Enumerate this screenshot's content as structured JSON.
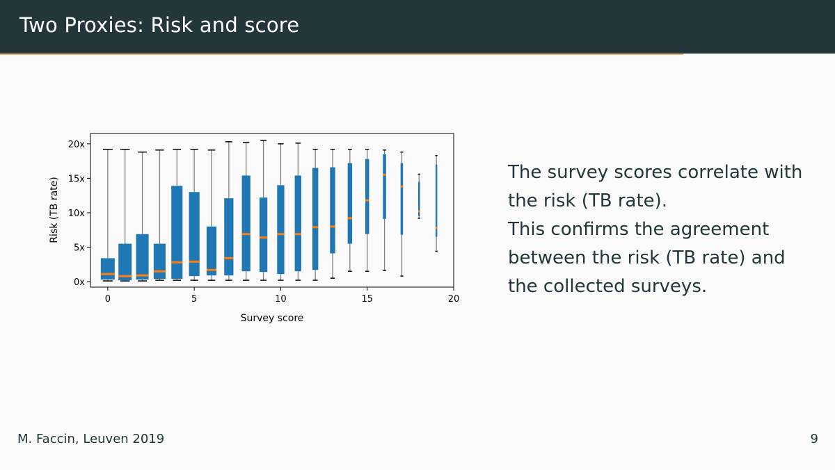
{
  "header": {
    "title": "Two Proxies: Risk and score"
  },
  "body": {
    "line1": "The survey scores correlate with the risk (TB rate).",
    "line2": "This confirms the agreement between the risk (TB rate) and the collected surveys."
  },
  "footer": {
    "author": "M. Faccin, Leuven 2019",
    "page": "9"
  },
  "colors": {
    "header_bg": "#23373b",
    "accent": "#eb811b",
    "box": "#1f77b4",
    "median": "#ff7f0e"
  },
  "chart_data": {
    "type": "boxplot",
    "xlabel": "Survey score",
    "ylabel": "Risk (TB rate)",
    "xlim": [
      -1,
      20
    ],
    "ylim": [
      -0.8,
      21.5
    ],
    "xticks": [
      0,
      5,
      10,
      15,
      20
    ],
    "xtick_labels": [
      "0",
      "5",
      "10",
      "15",
      "20"
    ],
    "yticks": [
      0,
      5,
      10,
      15,
      20
    ],
    "ytick_labels": [
      "0x",
      "5x",
      "10x",
      "15x",
      "20x"
    ],
    "boxes": [
      {
        "x": 0,
        "whislo": 0.1,
        "q1": 0.3,
        "med": 1.1,
        "q3": 3.4,
        "whishi": 19.2
      },
      {
        "x": 1,
        "whislo": 0.1,
        "q1": 0.2,
        "med": 0.8,
        "q3": 5.5,
        "whishi": 19.2
      },
      {
        "x": 2,
        "whislo": 0.1,
        "q1": 0.3,
        "med": 0.9,
        "q3": 6.9,
        "whishi": 18.8
      },
      {
        "x": 3,
        "whislo": 0.2,
        "q1": 0.4,
        "med": 1.5,
        "q3": 5.5,
        "whishi": 19.1
      },
      {
        "x": 4,
        "whislo": 0.2,
        "q1": 0.4,
        "med": 2.8,
        "q3": 13.9,
        "whishi": 19.2
      },
      {
        "x": 5,
        "whislo": 0.2,
        "q1": 0.8,
        "med": 2.9,
        "q3": 13.0,
        "whishi": 19.2
      },
      {
        "x": 6,
        "whislo": 0.2,
        "q1": 0.9,
        "med": 1.7,
        "q3": 8.0,
        "whishi": 19.1
      },
      {
        "x": 7,
        "whislo": 0.2,
        "q1": 0.9,
        "med": 3.4,
        "q3": 12.1,
        "whishi": 20.3
      },
      {
        "x": 8,
        "whislo": 0.2,
        "q1": 1.5,
        "med": 6.9,
        "q3": 15.4,
        "whishi": 20.2
      },
      {
        "x": 9,
        "whislo": 0.2,
        "q1": 1.4,
        "med": 6.4,
        "q3": 12.2,
        "whishi": 20.5
      },
      {
        "x": 10,
        "whislo": 0.2,
        "q1": 1.1,
        "med": 6.9,
        "q3": 14.0,
        "whishi": 20.0
      },
      {
        "x": 11,
        "whislo": 0.2,
        "q1": 1.5,
        "med": 6.9,
        "q3": 15.4,
        "whishi": 20.1
      },
      {
        "x": 12,
        "whislo": 0.2,
        "q1": 1.7,
        "med": 7.9,
        "q3": 16.5,
        "whishi": 19.2
      },
      {
        "x": 13,
        "whislo": 0.5,
        "q1": 4.1,
        "med": 8.0,
        "q3": 16.6,
        "whishi": 19.2
      },
      {
        "x": 14,
        "whislo": 1.5,
        "q1": 5.5,
        "med": 9.2,
        "q3": 17.2,
        "whishi": 19.2
      },
      {
        "x": 15,
        "whislo": 1.5,
        "q1": 6.9,
        "med": 11.8,
        "q3": 17.8,
        "whishi": 19.2
      },
      {
        "x": 16,
        "whislo": 1.6,
        "q1": 9.1,
        "med": 15.5,
        "q3": 18.5,
        "whishi": 19.1
      },
      {
        "x": 17,
        "whislo": 0.8,
        "q1": 6.8,
        "med": 13.8,
        "q3": 17.2,
        "whishi": 18.8
      },
      {
        "x": 18,
        "whislo": 9.2,
        "q1": 9.5,
        "med": 10.2,
        "q3": 14.5,
        "whishi": 15.6
      },
      {
        "x": 19,
        "whislo": 4.4,
        "q1": 6.5,
        "med": 7.8,
        "q3": 17.0,
        "whishi": 18.3
      }
    ]
  }
}
